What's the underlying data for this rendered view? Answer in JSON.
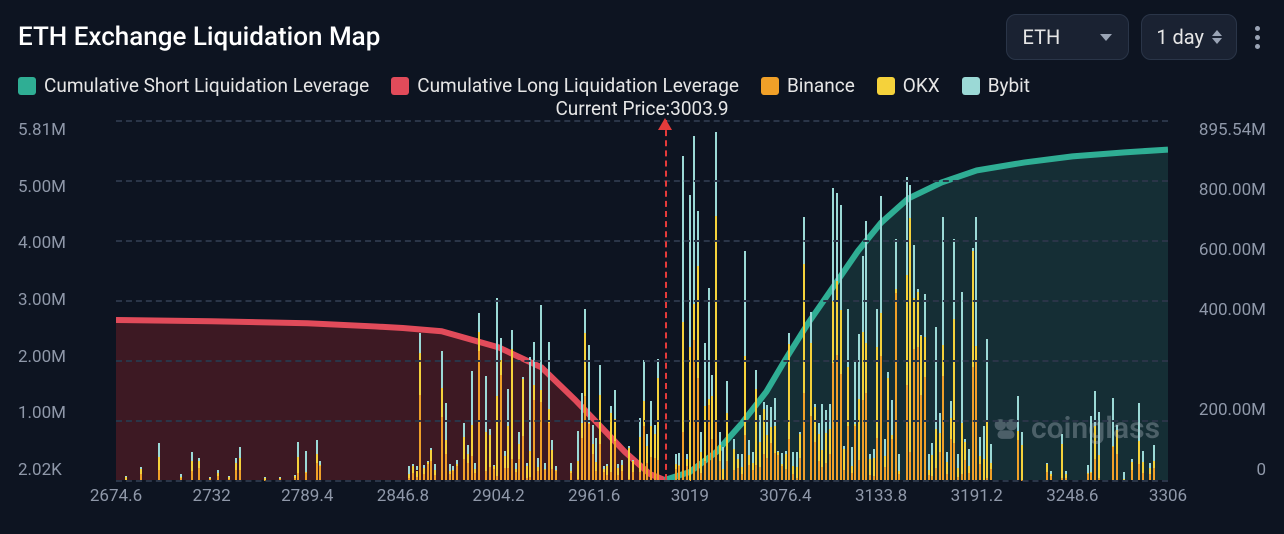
{
  "header": {
    "title": "ETH Exchange Liquidation Map",
    "asset_dropdown": {
      "value": "ETH"
    },
    "timeframe_dropdown": {
      "value": "1 day"
    }
  },
  "legend": {
    "items": [
      {
        "label": "Cumulative Short Liquidation Leverage",
        "color": "#2fae94"
      },
      {
        "label": "Cumulative Long Liquidation Leverage",
        "color": "#e14b5a"
      },
      {
        "label": "Binance",
        "color": "#f0a028"
      },
      {
        "label": "OKX",
        "color": "#f5d23b"
      },
      {
        "label": "Bybit",
        "color": "#9bd9d6"
      }
    ]
  },
  "subtitle": {
    "prefix": "Current Price:",
    "value": "3003.9"
  },
  "watermark": "coinglass",
  "chart": {
    "type": "bar+line",
    "background_color": "#0d1421",
    "grid_color": "#2a3548",
    "label_color": "#8f98a9",
    "label_fontsize": 17,
    "x": {
      "min": 2674.6,
      "max": 3306,
      "ticks": [
        "2674.6",
        "2732",
        "2789.4",
        "2846.8",
        "2904.2",
        "2961.6",
        "3019",
        "3076.4",
        "3133.8",
        "3191.2",
        "3248.6",
        "3306"
      ]
    },
    "y_left": {
      "min_label": "2.02K",
      "min": 0,
      "max": 5810000,
      "ticks": [
        "5.81M",
        "5.00M",
        "4.00M",
        "3.00M",
        "2.00M",
        "1.00M",
        "2.02K"
      ]
    },
    "y_right": {
      "min": 0,
      "max": 895540000,
      "ticks": [
        "895.54M",
        "800.00M",
        "600.00M",
        "400.00M",
        "",
        "200.00M",
        "0"
      ]
    },
    "current_price_x": 3003.9,
    "long_area": {
      "color_line": "#e14b5a",
      "color_fill": "rgba(120,30,38,0.45)",
      "points": [
        [
          2674.6,
          398
        ],
        [
          2732,
          395
        ],
        [
          2789.4,
          390
        ],
        [
          2830,
          382
        ],
        [
          2846.8,
          378
        ],
        [
          2870,
          370
        ],
        [
          2904.2,
          330
        ],
        [
          2930,
          280
        ],
        [
          2950,
          200
        ],
        [
          2961.6,
          150
        ],
        [
          2980,
          70
        ],
        [
          2995,
          15
        ],
        [
          3003.9,
          0
        ]
      ]
    },
    "short_area": {
      "color_line": "#2fae94",
      "color_fill": "rgba(40,110,98,0.30)",
      "points": [
        [
          3003.9,
          0
        ],
        [
          3019,
          20
        ],
        [
          3035,
          70
        ],
        [
          3050,
          140
        ],
        [
          3065,
          220
        ],
        [
          3076.4,
          300
        ],
        [
          3090,
          390
        ],
        [
          3105,
          480
        ],
        [
          3120,
          570
        ],
        [
          3133.8,
          640
        ],
        [
          3150,
          700
        ],
        [
          3170,
          740
        ],
        [
          3191.2,
          770
        ],
        [
          3220,
          790
        ],
        [
          3248.6,
          805
        ],
        [
          3280,
          815
        ],
        [
          3306,
          822
        ]
      ]
    },
    "bar_groups": [
      {
        "range": [
          2680,
          2800
        ],
        "density": 0.35,
        "max_h": 0.65
      },
      {
        "range": [
          2850,
          3000
        ],
        "density": 0.85,
        "max_h": 2.8
      },
      {
        "range": [
          3010,
          3200
        ],
        "density": 0.95,
        "max_h": 5.2
      },
      {
        "range": [
          3200,
          3306
        ],
        "density": 0.45,
        "max_h": 1.4
      }
    ],
    "bar_colors": [
      "#f0a028",
      "#f5d23b",
      "#9bd9d6"
    ]
  }
}
